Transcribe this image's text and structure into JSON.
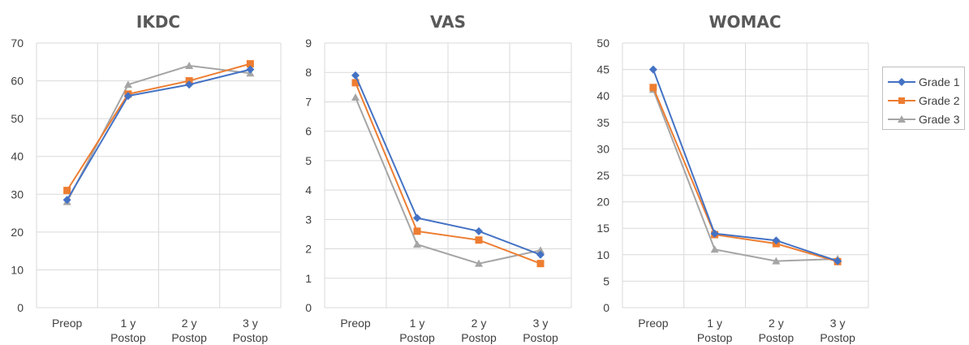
{
  "colors": {
    "grade1": "#4472C4",
    "grade2": "#ED7D31",
    "grade3": "#A5A5A5",
    "grid": "#d9d9d9"
  },
  "legend": {
    "placement": "right",
    "items": [
      {
        "label": "Grade 1",
        "color": "#4472C4",
        "marker": "diamond"
      },
      {
        "label": "Grade 2",
        "color": "#ED7D31",
        "marker": "square"
      },
      {
        "label": "Grade 3",
        "color": "#A5A5A5",
        "marker": "triangle"
      }
    ]
  },
  "chart_data": [
    {
      "type": "line",
      "title": "IKDC",
      "categories": [
        "Preop",
        "1 y\nPostop",
        "2 y\nPostop",
        "3 y\nPostop"
      ],
      "ylim": [
        0,
        70
      ],
      "yticks": [
        0,
        10,
        20,
        30,
        40,
        50,
        60,
        70
      ],
      "grid": true,
      "series": [
        {
          "name": "Grade 1",
          "values": [
            28.5,
            56,
            59,
            63
          ]
        },
        {
          "name": "Grade 2",
          "values": [
            31,
            56.5,
            60,
            64.5
          ]
        },
        {
          "name": "Grade 3",
          "values": [
            28,
            59,
            64,
            62
          ]
        }
      ]
    },
    {
      "type": "line",
      "title": "VAS",
      "categories": [
        "Preop",
        "1 y\nPostop",
        "2 y\nPostop",
        "3 y\nPostop"
      ],
      "ylim": [
        0,
        9
      ],
      "yticks": [
        0,
        1,
        2,
        3,
        4,
        5,
        6,
        7,
        8,
        9
      ],
      "grid": true,
      "series": [
        {
          "name": "Grade 1",
          "values": [
            7.9,
            3.05,
            2.6,
            1.8
          ]
        },
        {
          "name": "Grade 2",
          "values": [
            7.65,
            2.6,
            2.3,
            1.5
          ]
        },
        {
          "name": "Grade 3",
          "values": [
            7.15,
            2.15,
            1.5,
            1.95
          ]
        }
      ]
    },
    {
      "type": "line",
      "title": "WOMAC",
      "categories": [
        "Preop",
        "1 y\nPostop",
        "2 y\nPostop",
        "3 y\nPostop"
      ],
      "ylim": [
        0,
        50
      ],
      "yticks": [
        0,
        5,
        10,
        15,
        20,
        25,
        30,
        35,
        40,
        45,
        50
      ],
      "grid": true,
      "series": [
        {
          "name": "Grade 1",
          "values": [
            45,
            14,
            12.7,
            8.8
          ]
        },
        {
          "name": "Grade 2",
          "values": [
            41.6,
            13.8,
            12.1,
            8.7
          ]
        },
        {
          "name": "Grade 3",
          "values": [
            41.2,
            11,
            8.8,
            9.2
          ]
        }
      ]
    }
  ]
}
